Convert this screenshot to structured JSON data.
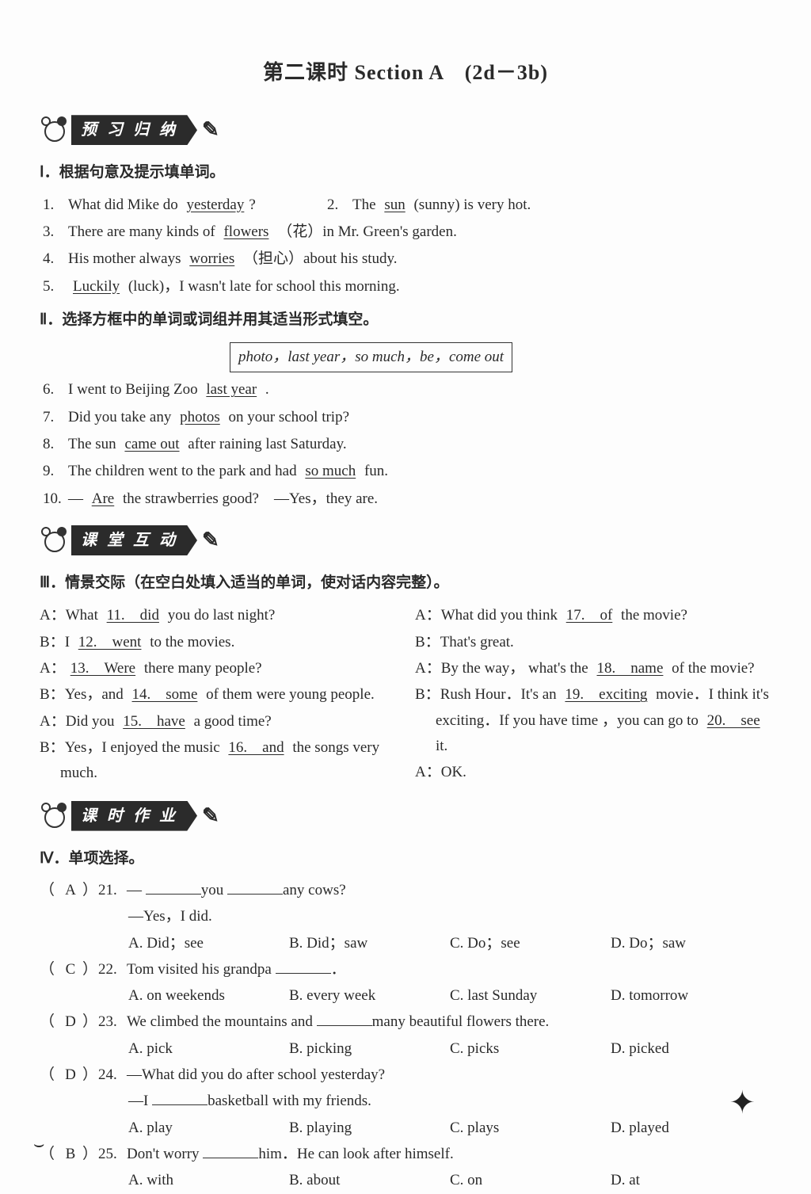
{
  "title": "第二课时 Section A　(2d－3b)",
  "banner1": "预 习 归 纳",
  "banner2": "课 堂 互 动",
  "banner3": "课 时 作 业",
  "sec_I": "Ⅰ．根据句意及提示填单词。",
  "sec_II": "Ⅱ．选择方框中的单词或词组并用其适当形式填空。",
  "sec_III": "Ⅲ．情景交际（在空白处填入适当的单词，使对话内容完整）。",
  "sec_IV": "Ⅳ．单项选择。",
  "q1": {
    "num": "1.",
    "pre": "What did Mike do ",
    "ans": "yesterday",
    "post": "?"
  },
  "q2": {
    "num": "2.",
    "pre": "The ",
    "ans": "sun",
    "post": " (sunny) is very hot."
  },
  "q3": {
    "num": "3.",
    "pre": "There are many kinds of ",
    "ans": "flowers",
    "post": " （花）in Mr. Green's garden."
  },
  "q4": {
    "num": "4.",
    "pre": "His mother always ",
    "ans": "worries",
    "post": " （担心）about his study."
  },
  "q5": {
    "num": "5.",
    "pre": "",
    "ans": "Luckily",
    "post": " (luck)，I wasn't late for school this morning."
  },
  "wordbox": "photo，last year，so much，be，come out",
  "q6": {
    "num": "6.",
    "pre": "I went to Beijing Zoo ",
    "ans": "last year",
    "post": " ."
  },
  "q7": {
    "num": "7.",
    "pre": "Did you take any ",
    "ans": "photos",
    "post": " on your school trip?"
  },
  "q8": {
    "num": "8.",
    "pre": "The sun ",
    "ans": "came out",
    "post": " after raining last Saturday."
  },
  "q9": {
    "num": "9.",
    "pre": "The children went to the park and had ",
    "ans": "so much",
    "post": " fun."
  },
  "q10": {
    "num": "10.",
    "pre": "— ",
    "ans": "Are",
    "post": " the strawberries good?　—Yes，they are."
  },
  "d_left": [
    {
      "sp": "A：",
      "pre": "What ",
      "u": "11.　did",
      "post": " you do last night?"
    },
    {
      "sp": "B：",
      "pre": "I ",
      "u": "12.　went",
      "post": " to the movies."
    },
    {
      "sp": "A：",
      "pre": "",
      "u": "13.　Were",
      "post": " there many people?"
    },
    {
      "sp": "B：",
      "pre": "Yes，and ",
      "u": "14.　some",
      "post": " of them were young people."
    },
    {
      "sp": "A：",
      "pre": "Did you ",
      "u": "15.　have",
      "post": " a good time?"
    },
    {
      "sp": "B：",
      "pre": "Yes，I enjoyed the music ",
      "u": "16.　and",
      "post": " the songs very much."
    }
  ],
  "d_right": [
    {
      "sp": "A：",
      "pre": "What did you think ",
      "u": "17.　of",
      "post": " the movie?"
    },
    {
      "sp": "B：",
      "pre": "That's great.",
      "u": "",
      "post": ""
    },
    {
      "sp": "A：",
      "pre": "By the way， what's the ",
      "u": "18.　name",
      "post": " of the movie?"
    },
    {
      "sp": "B：",
      "pre": "Rush Hour．It's an ",
      "u": "19.　exciting",
      "post": " movie．I think it's exciting．If you have time ，you can go to ",
      "u2": "20.　see",
      "post2": " it."
    },
    {
      "sp": "A：",
      "pre": "OK.",
      "u": "",
      "post": ""
    }
  ],
  "mc": [
    {
      "ans": "A",
      "num": "21.",
      "stem_a": "— ",
      "stem_b": "you ",
      "stem_c": "any cows?",
      "line2": "—Yes，I did.",
      "opts": [
        "A. Did；see",
        "B. Did；saw",
        "C. Do；see",
        "D. Do；saw"
      ]
    },
    {
      "ans": "C",
      "num": "22.",
      "stem": "Tom visited his grandpa ",
      "opts": [
        "A. on weekends",
        "B. every week",
        "C. last Sunday",
        "D. tomorrow"
      ]
    },
    {
      "ans": "D",
      "num": "23.",
      "stem_a": "We climbed the mountains and ",
      "stem_b": "many beautiful flowers there.",
      "opts": [
        "A. pick",
        "B. picking",
        "C. picks",
        "D. picked"
      ]
    },
    {
      "ans": "D",
      "num": "24.",
      "stem": "—What did you do after school yesterday?",
      "line2_a": "—I ",
      "line2_b": "basketball with my friends.",
      "opts": [
        "A. play",
        "B. playing",
        "C. plays",
        "D. played"
      ]
    },
    {
      "ans": "B",
      "num": "25.",
      "stem_a": "Don't worry ",
      "stem_b": "him．He can look after himself.",
      "opts": [
        "A. with",
        "B. about",
        "C. on",
        "D. at"
      ]
    }
  ]
}
